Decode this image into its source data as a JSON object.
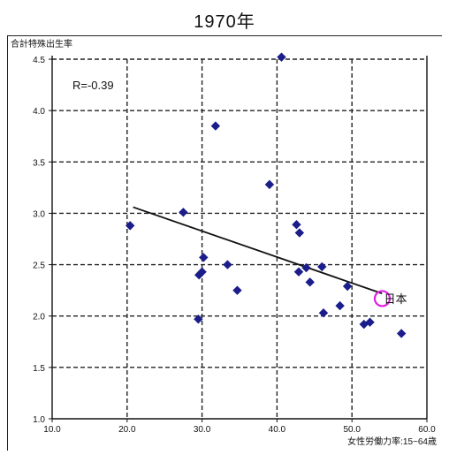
{
  "chart_data": {
    "type": "scatter",
    "title": "1970年",
    "ylabel": "合計特殊出生率",
    "xlabel": "女性労働力率:15~64歳",
    "xlim": [
      10,
      60
    ],
    "ylim": [
      1.0,
      4.5
    ],
    "x_ticks": [
      "10.0",
      "20.0",
      "30.0",
      "40.0",
      "50.0",
      "60.0"
    ],
    "y_ticks": [
      "1.0",
      "1.5",
      "2.0",
      "2.5",
      "3.0",
      "3.5",
      "4.0",
      "4.5"
    ],
    "grid": true,
    "correlation_label": "R=-0.39",
    "highlight_label": "日本",
    "highlight_point": {
      "x": 54.4,
      "y": 2.17
    },
    "trendline": {
      "x1": 20.8,
      "y1": 3.06,
      "x2": 54.0,
      "y2": 2.22
    },
    "points": [
      {
        "x": 20.4,
        "y": 2.88
      },
      {
        "x": 27.5,
        "y": 3.01
      },
      {
        "x": 29.5,
        "y": 1.97
      },
      {
        "x": 29.6,
        "y": 2.4
      },
      {
        "x": 30.0,
        "y": 2.43
      },
      {
        "x": 30.2,
        "y": 2.57
      },
      {
        "x": 31.8,
        "y": 3.85
      },
      {
        "x": 33.4,
        "y": 2.5
      },
      {
        "x": 34.7,
        "y": 2.25
      },
      {
        "x": 39.0,
        "y": 3.28
      },
      {
        "x": 40.6,
        "y": 4.52
      },
      {
        "x": 42.6,
        "y": 2.89
      },
      {
        "x": 42.9,
        "y": 2.43
      },
      {
        "x": 43.0,
        "y": 2.81
      },
      {
        "x": 43.9,
        "y": 2.47
      },
      {
        "x": 44.4,
        "y": 2.33
      },
      {
        "x": 46.0,
        "y": 2.48
      },
      {
        "x": 46.2,
        "y": 2.03
      },
      {
        "x": 48.4,
        "y": 2.1
      },
      {
        "x": 49.4,
        "y": 2.29
      },
      {
        "x": 51.6,
        "y": 1.92
      },
      {
        "x": 52.4,
        "y": 1.94
      },
      {
        "x": 56.6,
        "y": 1.83
      }
    ],
    "colors": {
      "point": "#1a1d8a",
      "trendline": "#111111",
      "highlight_circle": "#e020e0",
      "grid": "#222222"
    }
  }
}
